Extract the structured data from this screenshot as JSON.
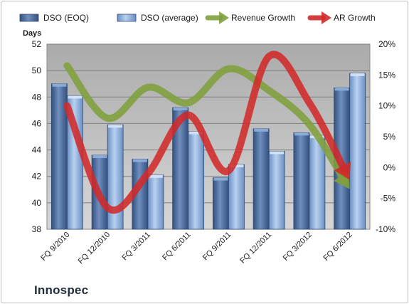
{
  "company": "Innospec",
  "chart_data": {
    "type": "bar",
    "categories": [
      "FQ 9/2010",
      "FQ 12/2010",
      "FQ 3/2011",
      "FQ 6/2011",
      "FQ 9/2011",
      "FQ 12/2011",
      "FQ 3/2012",
      "FQ 6/2012"
    ],
    "series": [
      {
        "name": "DSO (EOQ)",
        "kind": "bar",
        "axis": "left",
        "color": "#4f6fa0",
        "values": [
          49.0,
          43.6,
          43.3,
          47.2,
          41.9,
          45.6,
          45.3,
          48.7
        ]
      },
      {
        "name": "DSO (average)",
        "kind": "bar",
        "axis": "left",
        "color": "#8eb0dc",
        "values": [
          48.1,
          45.9,
          42.1,
          45.4,
          42.9,
          43.9,
          45.1,
          49.8
        ]
      },
      {
        "name": "Revenue Growth",
        "kind": "line",
        "axis": "right",
        "color": "#7fa03c",
        "values": [
          16.5,
          8.0,
          13.0,
          10.5,
          16.0,
          12.5,
          7.0,
          -3.5
        ]
      },
      {
        "name": "AR Growth",
        "kind": "line",
        "axis": "right",
        "color": "#d02a2a",
        "values": [
          10.0,
          -6.5,
          -1.0,
          8.5,
          -0.5,
          18.0,
          10.5,
          -2.0
        ]
      }
    ],
    "ylabel": "Days",
    "ylim": [
      38,
      52
    ],
    "yticks": [
      "38",
      "40",
      "42",
      "44",
      "46",
      "48",
      "50",
      "52"
    ],
    "y2lim": [
      -10,
      20
    ],
    "y2ticks": [
      "-10%",
      "-5%",
      "0%",
      "5%",
      "10%",
      "15%",
      "20%"
    ],
    "grid": true,
    "legend": "top"
  }
}
